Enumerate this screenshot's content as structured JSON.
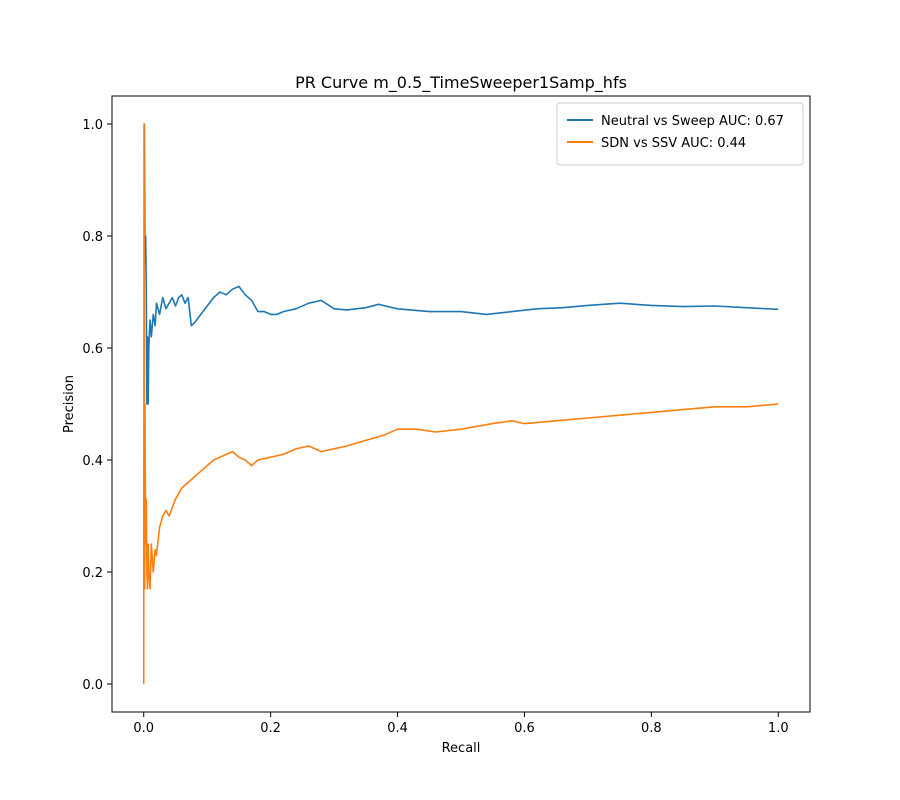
{
  "chart_data": {
    "type": "line",
    "title": "PR Curve m_0.5_TimeSweeper1Samp_hfs",
    "xlabel": "Recall",
    "ylabel": "Precision",
    "xlim": [
      -0.05,
      1.05
    ],
    "ylim": [
      -0.05,
      1.05
    ],
    "xticks": [
      "0.0",
      "0.2",
      "0.4",
      "0.6",
      "0.8",
      "1.0"
    ],
    "yticks": [
      "0.0",
      "0.2",
      "0.4",
      "0.6",
      "0.8",
      "1.0"
    ],
    "grid": false,
    "legend_position": "top-right",
    "series": [
      {
        "name": "Neutral vs Sweep AUC: 0.67",
        "color": "#1f77b4",
        "x": [
          0,
          0.001,
          0.002,
          0.003,
          0.004,
          0.005,
          0.006,
          0.007,
          0.008,
          0.01,
          0.012,
          0.015,
          0.018,
          0.02,
          0.025,
          0.03,
          0.035,
          0.04,
          0.045,
          0.05,
          0.055,
          0.06,
          0.065,
          0.07,
          0.075,
          0.08,
          0.09,
          0.1,
          0.11,
          0.12,
          0.13,
          0.14,
          0.15,
          0.16,
          0.17,
          0.18,
          0.19,
          0.2,
          0.21,
          0.22,
          0.24,
          0.26,
          0.28,
          0.3,
          0.32,
          0.35,
          0.37,
          0.4,
          0.45,
          0.5,
          0.54,
          0.58,
          0.62,
          0.66,
          0.7,
          0.75,
          0.8,
          0.85,
          0.9,
          0.95,
          1.0
        ],
        "y": [
          1.0,
          1.0,
          0.75,
          0.8,
          0.71,
          0.5,
          0.62,
          0.5,
          0.6,
          0.65,
          0.62,
          0.66,
          0.64,
          0.68,
          0.66,
          0.69,
          0.67,
          0.68,
          0.69,
          0.675,
          0.69,
          0.695,
          0.68,
          0.69,
          0.64,
          0.645,
          0.66,
          0.675,
          0.69,
          0.7,
          0.695,
          0.705,
          0.71,
          0.695,
          0.685,
          0.665,
          0.665,
          0.66,
          0.66,
          0.665,
          0.67,
          0.68,
          0.685,
          0.67,
          0.668,
          0.672,
          0.678,
          0.67,
          0.665,
          0.665,
          0.66,
          0.665,
          0.67,
          0.672,
          0.676,
          0.68,
          0.676,
          0.674,
          0.675,
          0.672,
          0.669
        ]
      },
      {
        "name": "SDN vs SSV AUC: 0.44",
        "color": "#ff7f0e",
        "x": [
          0,
          0.0005,
          0.001,
          0.0015,
          0.002,
          0.003,
          0.004,
          0.005,
          0.006,
          0.007,
          0.008,
          0.01,
          0.012,
          0.015,
          0.018,
          0.02,
          0.025,
          0.03,
          0.035,
          0.04,
          0.05,
          0.06,
          0.07,
          0.08,
          0.09,
          0.1,
          0.11,
          0.12,
          0.13,
          0.14,
          0.15,
          0.16,
          0.17,
          0.18,
          0.2,
          0.22,
          0.24,
          0.26,
          0.28,
          0.3,
          0.32,
          0.35,
          0.38,
          0.4,
          0.43,
          0.46,
          0.5,
          0.55,
          0.58,
          0.6,
          0.65,
          0.7,
          0.75,
          0.8,
          0.85,
          0.9,
          0.95,
          1.0
        ],
        "y": [
          0.0,
          1.0,
          0.5,
          0.17,
          0.5,
          0.25,
          0.33,
          0.2,
          0.17,
          0.25,
          0.2,
          0.17,
          0.25,
          0.2,
          0.24,
          0.23,
          0.28,
          0.3,
          0.31,
          0.3,
          0.33,
          0.35,
          0.36,
          0.37,
          0.38,
          0.39,
          0.4,
          0.405,
          0.41,
          0.415,
          0.405,
          0.4,
          0.39,
          0.4,
          0.405,
          0.41,
          0.42,
          0.425,
          0.415,
          0.42,
          0.425,
          0.435,
          0.445,
          0.455,
          0.455,
          0.45,
          0.455,
          0.465,
          0.47,
          0.465,
          0.47,
          0.475,
          0.48,
          0.485,
          0.49,
          0.495,
          0.495,
          0.5
        ]
      }
    ]
  }
}
